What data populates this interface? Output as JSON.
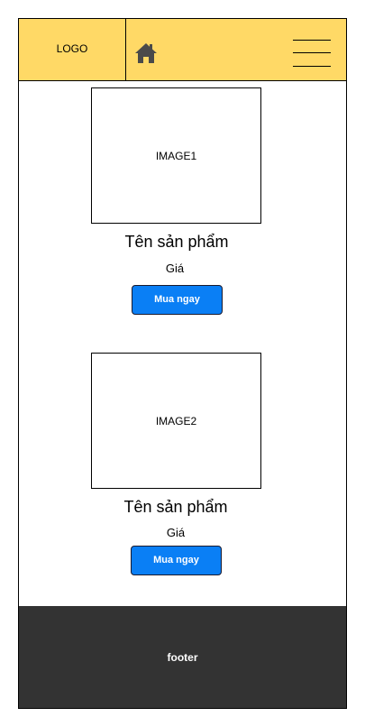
{
  "header": {
    "logo_text": "LOGO",
    "background_color": "#ffd966",
    "home_icon": "home-icon",
    "menu_icon": "hamburger-menu-icon"
  },
  "products": [
    {
      "image_label": "IMAGE1",
      "name": "Tên sản phẩm",
      "price": "Giá",
      "button_label": "Mua ngay"
    },
    {
      "image_label": "IMAGE2",
      "name": "Tên sản phẩm",
      "price": "Giá",
      "button_label": "Mua ngay"
    }
  ],
  "button_color": "#0a7ff5",
  "footer": {
    "text": "footer",
    "background_color": "#333333"
  }
}
